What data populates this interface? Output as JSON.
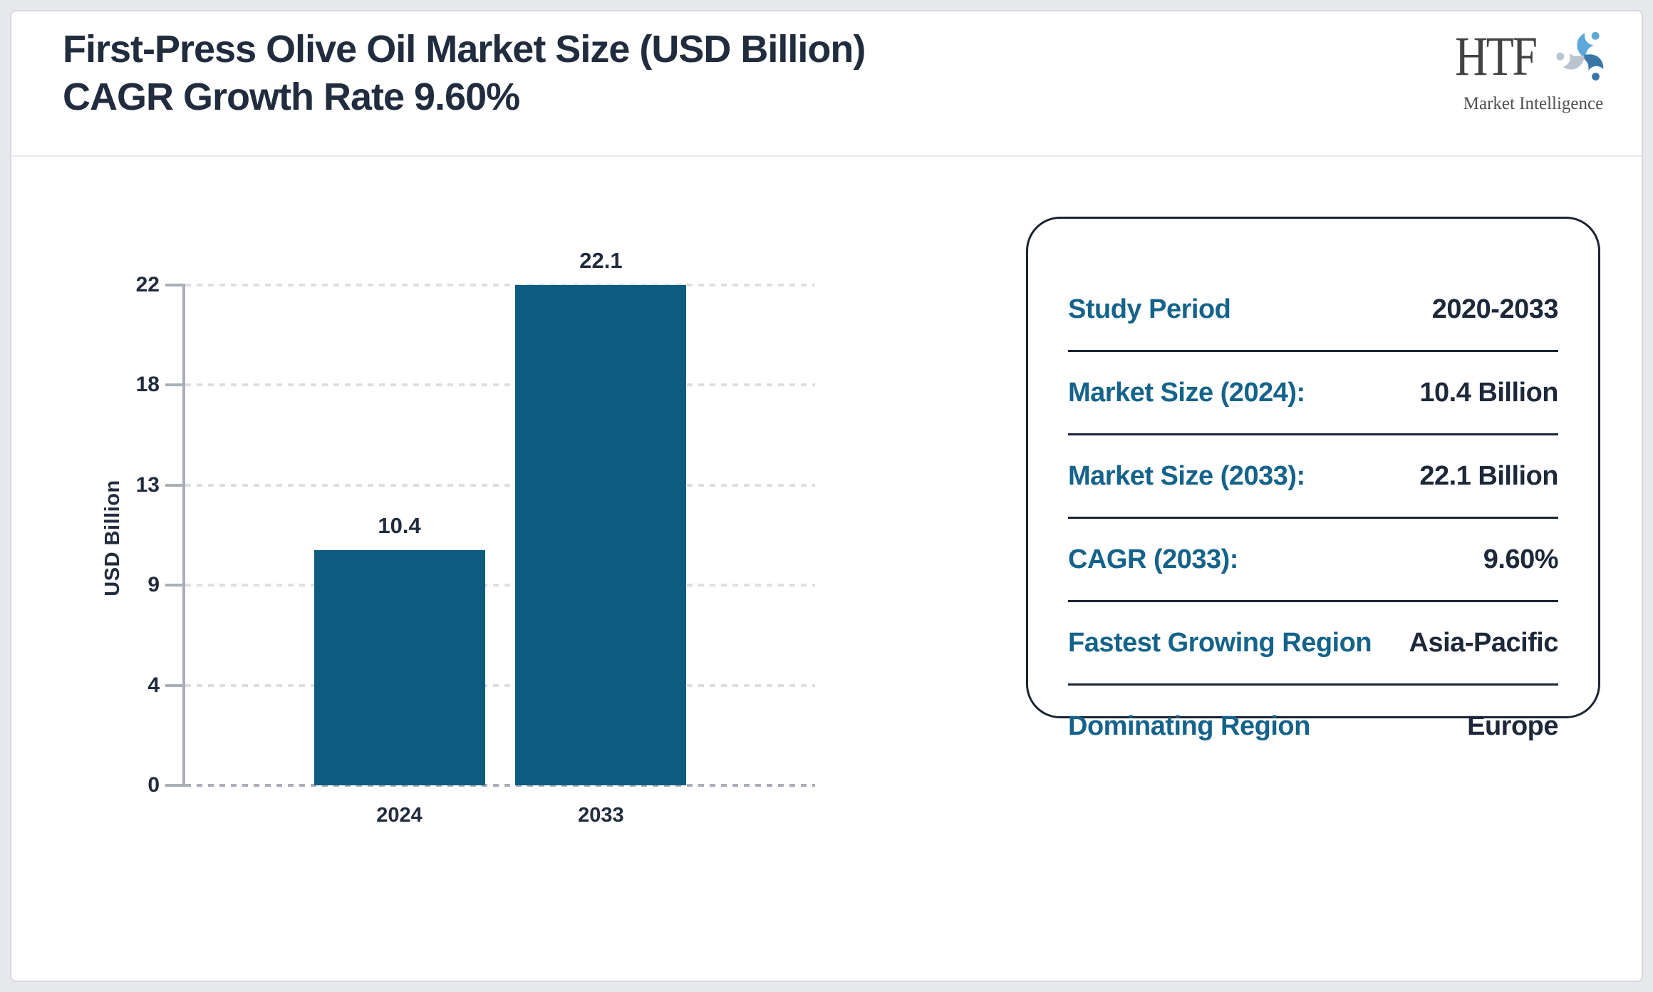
{
  "header": {
    "title_line1": "First-Press Olive Oil Market Size (USD Billion)",
    "title_line2": "CAGR Growth Rate 9.60%"
  },
  "logo": {
    "text": "HTF",
    "subtext": "Market Intelligence",
    "swirl_colors": [
      "#5ba8d9",
      "#3b76a6",
      "#b9c4cf"
    ]
  },
  "chart_data": {
    "type": "bar",
    "title": "First-Press Olive Oil Market Size (USD Billion) CAGR Growth Rate 9.60%",
    "categories": [
      "2024",
      "2033"
    ],
    "values": [
      10.4,
      22.1
    ],
    "value_labels": [
      "10.4",
      "22.1"
    ],
    "xlabel": "",
    "ylabel": "USD Billion",
    "ylim": [
      0,
      22.1
    ],
    "ytick_labels": [
      "0",
      "4",
      "9",
      "13",
      "18",
      "22"
    ],
    "grid": "horizontal-dotted",
    "legend": "none",
    "bar_color": "#0d5c80"
  },
  "panel": {
    "rows": [
      {
        "label": "Study Period",
        "value": "2020-2033"
      },
      {
        "label": "Market Size (2024):",
        "value": "10.4 Billion"
      },
      {
        "label": "Market Size (2033):",
        "value": "22.1 Billion"
      },
      {
        "label": "CAGR (2033):",
        "value": "9.60%"
      },
      {
        "label": "Fastest Growing Region",
        "value": "Asia-Pacific"
      },
      {
        "label": "Dominating Region",
        "value": "Europe"
      }
    ]
  },
  "colors": {
    "bar": "#0d5c80",
    "axis": "#a9aeb8",
    "gridline": "#dcdee2",
    "text_dark": "#212c3d",
    "panel_label": "#15638a",
    "panel_border": "#1a2433",
    "page_margin": "#e6e8ec"
  }
}
